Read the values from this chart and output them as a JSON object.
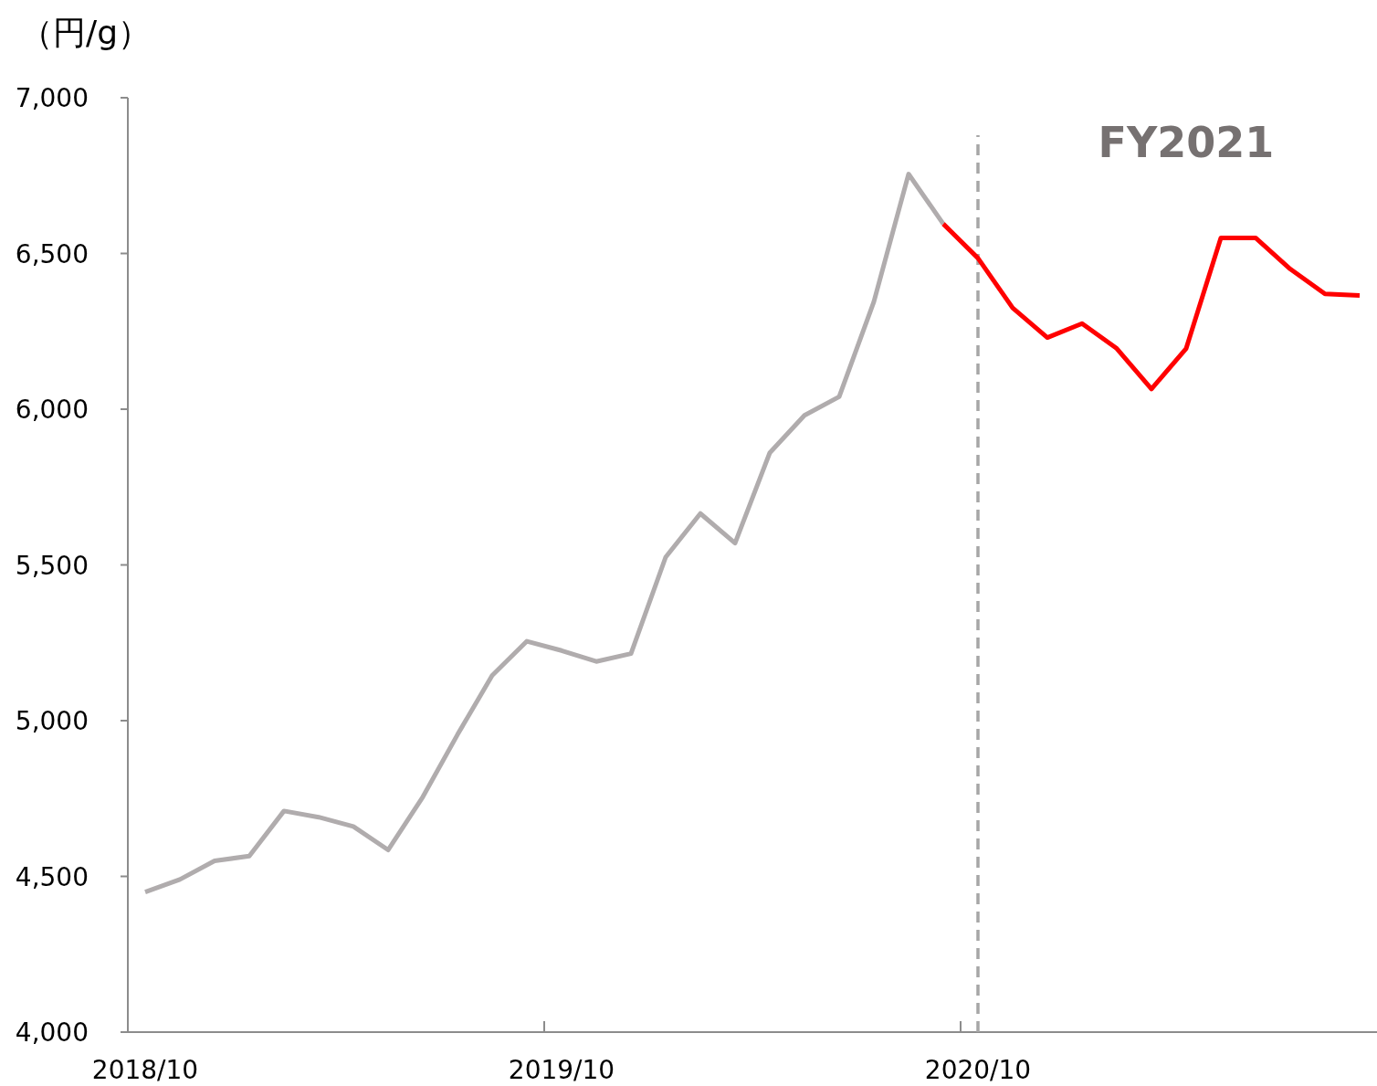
{
  "chart_data": {
    "type": "line",
    "ylabel": "（円/g）",
    "categories": [
      "2018/10",
      null,
      null,
      null,
      null,
      null,
      null,
      null,
      null,
      null,
      null,
      null,
      "2019/10",
      null,
      null,
      null,
      null,
      null,
      null,
      null,
      null,
      null,
      null,
      null,
      "2020/10",
      null,
      null,
      null,
      null,
      null,
      null,
      null,
      null,
      null,
      null,
      null
    ],
    "series": [
      {
        "color": "#b0acad",
        "values": [
          4450,
          4490,
          4550,
          4565,
          4710,
          4690,
          4660,
          4585,
          4755,
          4955,
          5145,
          5255,
          5225,
          5190,
          5215,
          5525,
          5665,
          5570,
          5860,
          5980,
          6040,
          6345,
          6755,
          6595,
          null,
          null,
          null,
          null,
          null,
          null,
          null,
          null,
          null,
          null,
          null,
          null
        ]
      },
      {
        "color": "#ff0000",
        "values": [
          null,
          null,
          null,
          null,
          null,
          null,
          null,
          null,
          null,
          null,
          null,
          null,
          null,
          null,
          null,
          null,
          null,
          null,
          null,
          null,
          null,
          null,
          null,
          6595,
          6485,
          6325,
          6230,
          6275,
          6195,
          6065,
          6195,
          6550,
          6550,
          6450,
          6370,
          6365
        ]
      }
    ],
    "ylim": [
      4000,
      7000
    ],
    "yticks": [
      {
        "value": 4000,
        "label": "4,000"
      },
      {
        "value": 4500,
        "label": "4,500"
      },
      {
        "value": 5000,
        "label": "5,000"
      },
      {
        "value": 5500,
        "label": "5,500"
      },
      {
        "value": 6000,
        "label": "6,000"
      },
      {
        "value": 6500,
        "label": "6,500"
      },
      {
        "value": 7000,
        "label": "7,000"
      }
    ],
    "ref_lines": [
      {
        "axis": "x",
        "value": "2020/10",
        "color": "#a6a6a6",
        "line_style": "dashed"
      }
    ],
    "annotations": [
      "**FY2021**"
    ],
    "grid": false,
    "marker": "none",
    "line_style": "solid"
  }
}
